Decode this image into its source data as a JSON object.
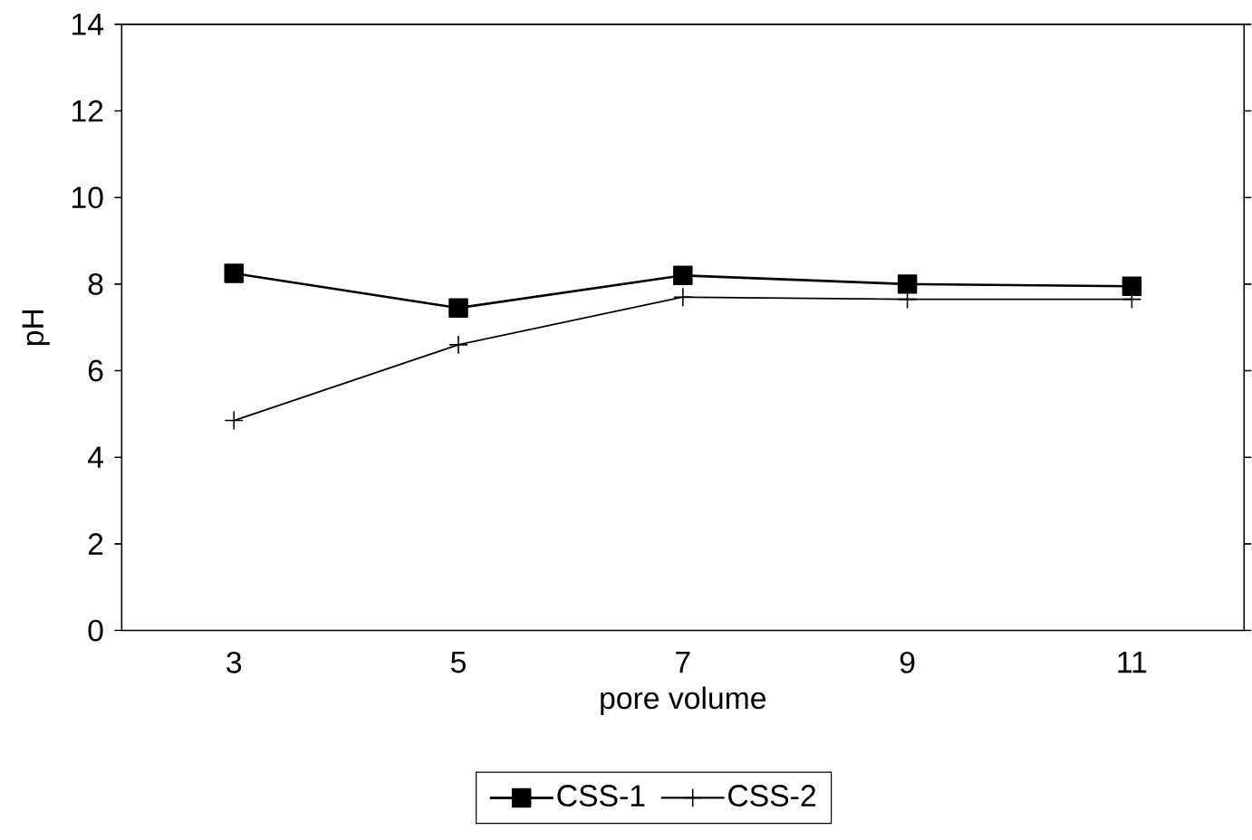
{
  "chart_data": {
    "type": "line",
    "xlabel": "pore volume",
    "ylabel": "pH",
    "x": [
      3,
      5,
      7,
      9,
      11
    ],
    "series": [
      {
        "name": "CSS-1",
        "color": "#000000",
        "marker": "square",
        "values": [
          8.25,
          7.45,
          8.2,
          8.0,
          7.95
        ]
      },
      {
        "name": "CSS-2",
        "color": "#000000",
        "marker": "cross",
        "values": [
          4.85,
          6.6,
          7.7,
          7.65,
          7.65
        ]
      }
    ],
    "xlim": [
      2,
      12
    ],
    "xticks": [
      3,
      5,
      7,
      9,
      11
    ],
    "ylim": [
      0,
      14
    ],
    "yticks": [
      0,
      2,
      4,
      6,
      8,
      10,
      12,
      14
    ],
    "grid": false,
    "legend": "bottom",
    "line_style": "solid"
  }
}
